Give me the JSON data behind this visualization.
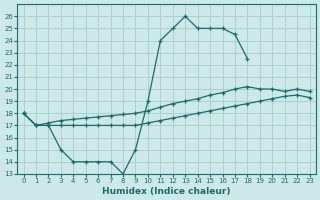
{
  "xlabel": "Humidex (Indice chaleur)",
  "background_color": "#cce8e8",
  "grid_color": "#aad0d0",
  "line_color": "#1a6b6b",
  "xlim": [
    -0.5,
    23.5
  ],
  "ylim": [
    13,
    27
  ],
  "xticks": [
    0,
    1,
    2,
    3,
    4,
    5,
    6,
    7,
    8,
    9,
    10,
    11,
    12,
    13,
    14,
    15,
    16,
    17,
    18,
    19,
    20,
    21,
    22,
    23
  ],
  "yticks": [
    13,
    14,
    15,
    16,
    17,
    18,
    19,
    20,
    21,
    22,
    23,
    24,
    25,
    26
  ],
  "series1_x": [
    0,
    1,
    2,
    3,
    4,
    5,
    6,
    7,
    8,
    9,
    10,
    11,
    12,
    13,
    14,
    15,
    16,
    17,
    18,
    19,
    20,
    21,
    22,
    23
  ],
  "series1_y": [
    18,
    17,
    17,
    15,
    14,
    14,
    14,
    14,
    13,
    15,
    19,
    24,
    25,
    26,
    25,
    25,
    25,
    24.5,
    22.5,
    null,
    null,
    null,
    null,
    null
  ],
  "series2_x": [
    0,
    1,
    2,
    3,
    4,
    5,
    6,
    7,
    8,
    9,
    10,
    11,
    12,
    13,
    14,
    15,
    16,
    17,
    18,
    19,
    20,
    21,
    22,
    23
  ],
  "series2_y": [
    18,
    17,
    17.2,
    17.4,
    17.5,
    17.6,
    17.7,
    17.8,
    17.9,
    18.0,
    18.2,
    18.5,
    18.8,
    19.0,
    19.2,
    19.5,
    19.7,
    20.0,
    20.2,
    20.0,
    20.0,
    19.8,
    20.0,
    19.8
  ],
  "series3_x": [
    0,
    1,
    2,
    3,
    4,
    5,
    6,
    7,
    8,
    9,
    10,
    11,
    12,
    13,
    14,
    15,
    16,
    17,
    18,
    19,
    20,
    21,
    22,
    23
  ],
  "series3_y": [
    18,
    17,
    17,
    17,
    17,
    17,
    17,
    17,
    17,
    17,
    17.2,
    17.4,
    17.6,
    17.8,
    18.0,
    18.2,
    18.4,
    18.6,
    18.8,
    19.0,
    19.2,
    19.4,
    19.5,
    19.3
  ]
}
